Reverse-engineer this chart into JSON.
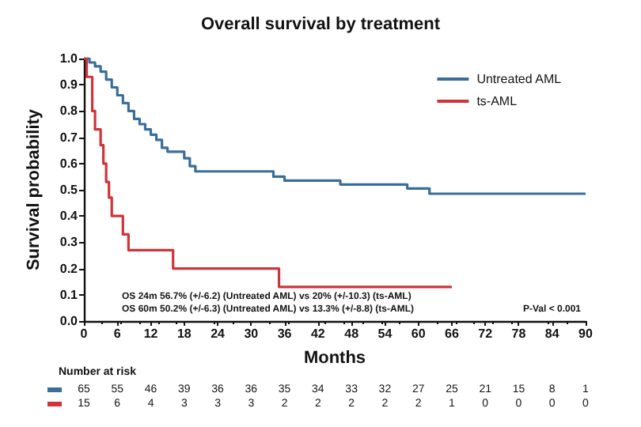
{
  "chart_data": {
    "type": "step",
    "title": "Overall survival by treatment",
    "xlabel": "Months",
    "ylabel": "Survival probability",
    "series": [
      {
        "name": "Untreated AML",
        "color": "#3a6e9a",
        "x": [
          0,
          1,
          2,
          3,
          4,
          5,
          6,
          7,
          8,
          9,
          10,
          11,
          12,
          13,
          14,
          15,
          18,
          19,
          20,
          34,
          36,
          46,
          58,
          62,
          90
        ],
        "values": [
          1.0,
          0.985,
          0.97,
          0.95,
          0.92,
          0.89,
          0.86,
          0.83,
          0.8,
          0.77,
          0.75,
          0.73,
          0.71,
          0.69,
          0.66,
          0.645,
          0.62,
          0.59,
          0.57,
          0.55,
          0.535,
          0.52,
          0.505,
          0.485,
          0.485
        ]
      },
      {
        "name": "ts-AML",
        "color": "#d0343a",
        "x": [
          0,
          0.5,
          1.5,
          2,
          3,
          3.5,
          4,
          4.5,
          5,
          7,
          8,
          16,
          35,
          66
        ],
        "values": [
          1.0,
          0.93,
          0.8,
          0.73,
          0.67,
          0.6,
          0.53,
          0.47,
          0.4,
          0.33,
          0.27,
          0.2,
          0.13,
          0.13
        ]
      }
    ],
    "xlim": [
      0,
      90
    ],
    "xticks": [
      0,
      6,
      12,
      18,
      24,
      30,
      36,
      42,
      48,
      54,
      60,
      66,
      72,
      78,
      84,
      90
    ],
    "ylim": [
      0,
      1
    ],
    "yticks": [
      {
        "value": 0,
        "label": "0.0"
      },
      {
        "value": 0.1,
        "label": "0.1"
      },
      {
        "value": 0.2,
        "label": "0.2"
      },
      {
        "value": 0.3,
        "label": "0.3"
      },
      {
        "value": 0.4,
        "label": "0.4"
      },
      {
        "value": 0.5,
        "label": "0.5"
      },
      {
        "value": 0.6,
        "label": "0.6"
      },
      {
        "value": 0.7,
        "label": "0.7"
      },
      {
        "value": 0.8,
        "label": "0.8"
      },
      {
        "value": 0.9,
        "label": "0.9"
      },
      {
        "value": 1,
        "label": "1.0"
      }
    ],
    "legend": "top right",
    "grid": false,
    "annotations": [
      "OS 24m 56.7% (+/-6.2) (Untreated AML) vs 20% (+/-10.3) (ts-AML)",
      "OS 60m 50.2% (+/-6.3) (Untreated AML) vs 13.3% (+/-8.8) (ts-AML)",
      "P-Val < 0.001",
      "Number at risk",
      "65 55 46 39 36 36 35 34 33 32 27 25 21 15 8 1",
      "15 6 4 3 3 3 2 2 2 2 2 1 0 0 0 0"
    ]
  }
}
